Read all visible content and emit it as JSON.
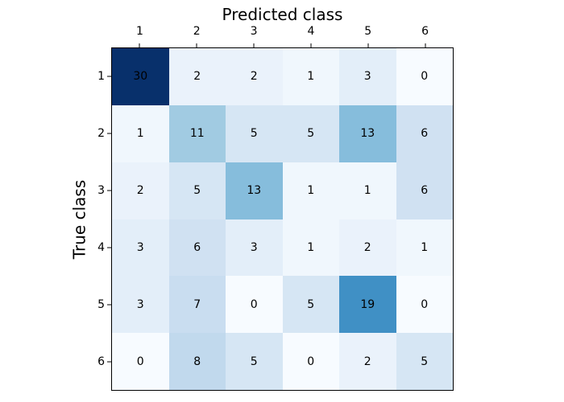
{
  "figure": {
    "background": "#ffffff"
  },
  "chart_data": {
    "type": "heatmap",
    "title": "Predicted class",
    "xlabel": "Predicted class",
    "ylabel": "True class",
    "xlabel_position": "top",
    "x_tick_labels": [
      "1",
      "2",
      "3",
      "4",
      "5",
      "6"
    ],
    "y_tick_labels": [
      "1",
      "2",
      "3",
      "4",
      "5",
      "6"
    ],
    "matrix": [
      [
        30,
        2,
        2,
        1,
        3,
        0
      ],
      [
        1,
        11,
        5,
        5,
        13,
        6
      ],
      [
        2,
        5,
        13,
        1,
        1,
        6
      ],
      [
        3,
        6,
        3,
        1,
        2,
        1
      ],
      [
        3,
        7,
        0,
        5,
        19,
        0
      ],
      [
        0,
        8,
        5,
        0,
        2,
        5
      ]
    ],
    "colormap": "Blues",
    "vmin": 0,
    "vmax": 30,
    "value_colors": {
      "0": "#F7FBFF",
      "1": "#F0F7FD",
      "2": "#EAF2FB",
      "3": "#E3EEF9",
      "5": "#D6E6F4",
      "6": "#D0E1F2",
      "7": "#C9DDF0",
      "8": "#C1D9ED",
      "11": "#A1CBE2",
      "13": "#86BDDC",
      "19": "#4090C5",
      "30": "#08306B"
    },
    "cell_text_color": "#000000",
    "axes_border_color": "#000000",
    "grid": false,
    "legend": "none"
  }
}
